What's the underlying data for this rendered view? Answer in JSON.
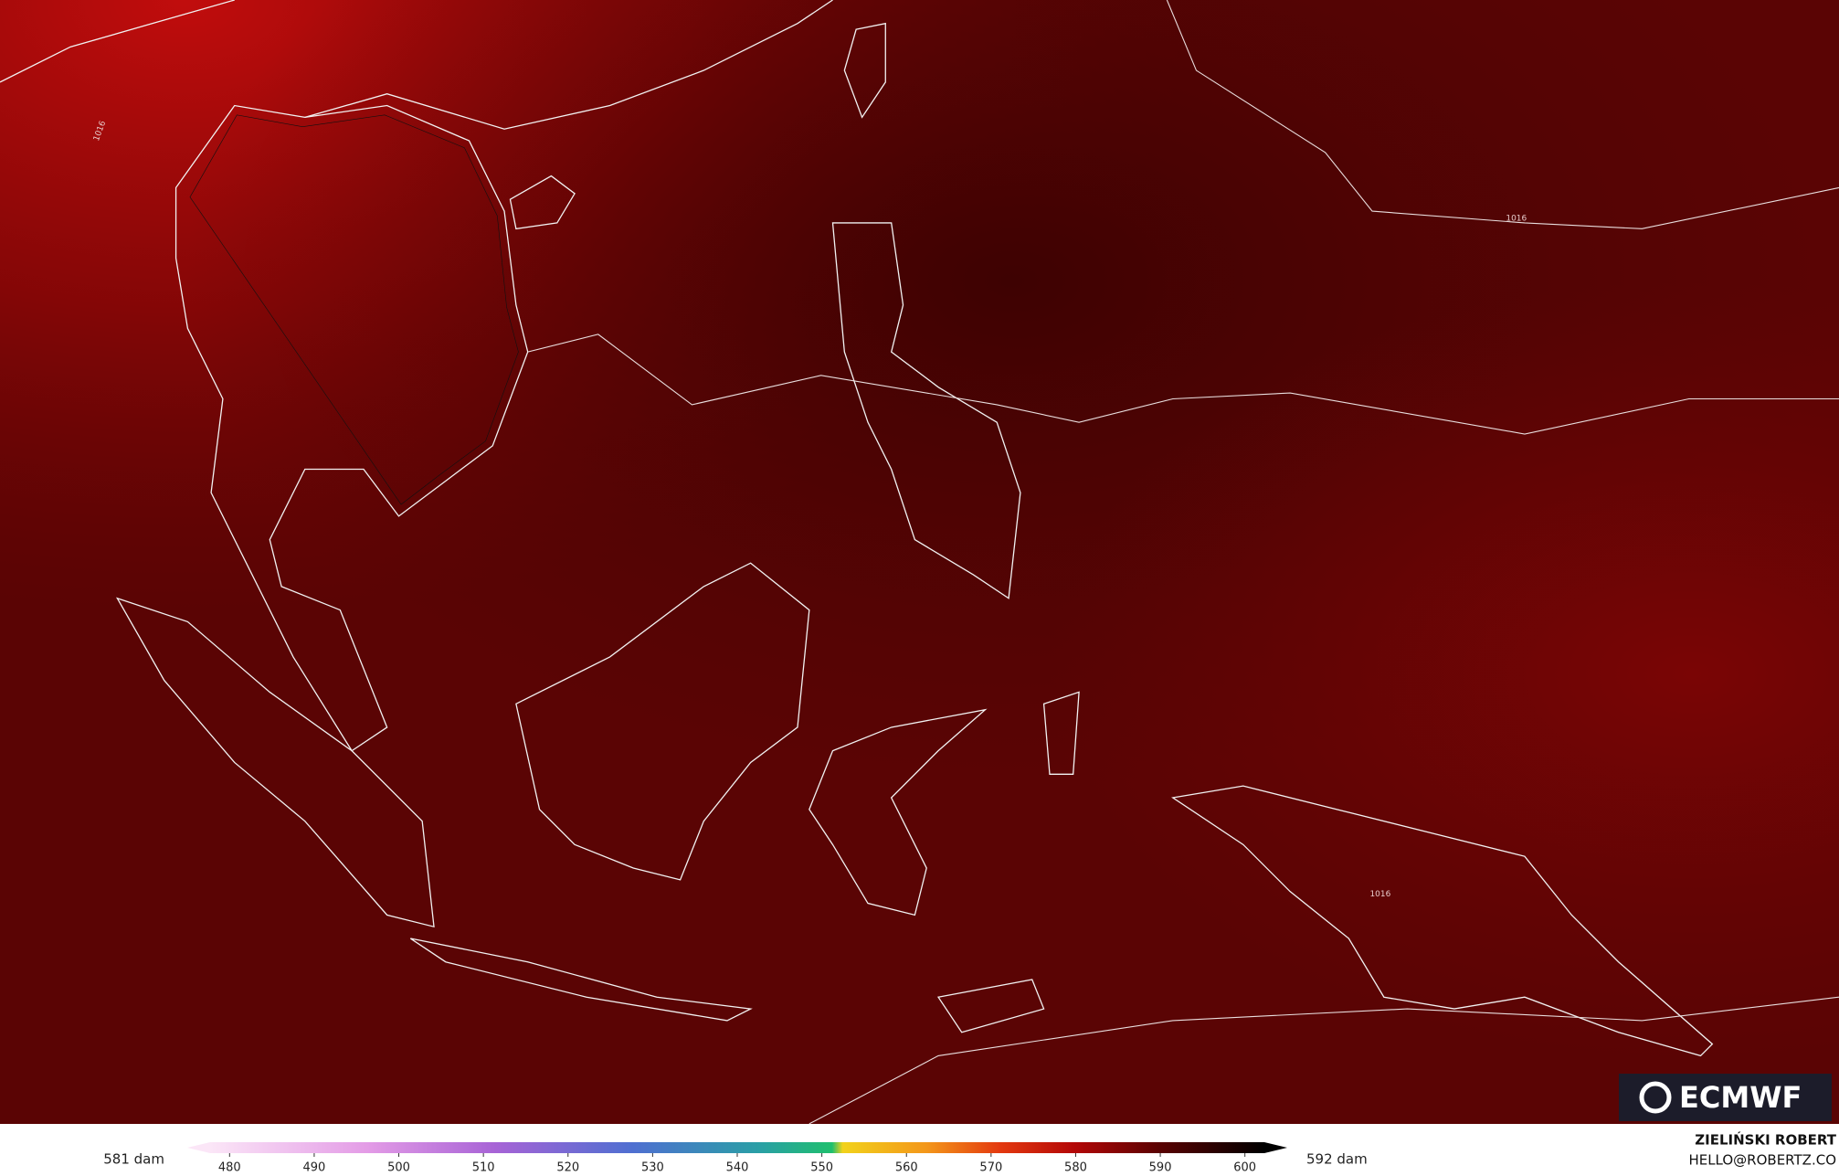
{
  "logo": "ECMWF",
  "contour_labels": [
    "1016",
    "1016",
    "1016"
  ],
  "colorbar": {
    "min_label": "581 dam",
    "max_label": "592 dam",
    "range": [
      475,
      605
    ],
    "ticks": [
      480,
      490,
      500,
      510,
      520,
      530,
      540,
      550,
      560,
      570,
      580,
      590,
      600
    ]
  },
  "credit": {
    "name": "ZIELIŃSKI ROBERT",
    "contact": "HELLO@ROBERTZ.CO"
  }
}
